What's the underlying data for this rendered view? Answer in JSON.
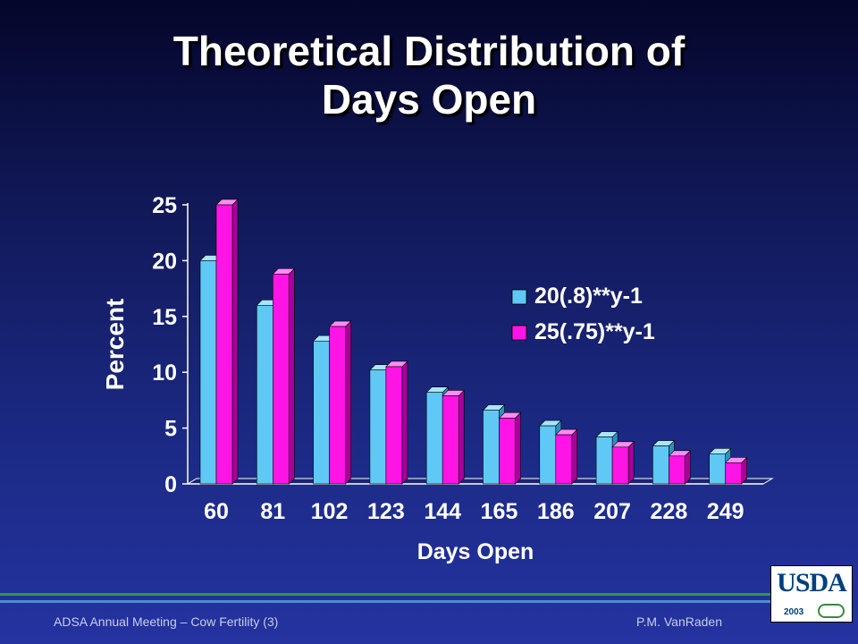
{
  "slide": {
    "title_line1": "Theoretical Distribution of",
    "title_line2": "Days Open",
    "footer_left": "ADSA Annual Meeting – Cow Fertility (3)",
    "footer_right": "P.M. VanRaden",
    "logo_text": "USDA",
    "logo_year": "2003"
  },
  "chart_data": {
    "type": "bar",
    "categories": [
      "60",
      "81",
      "102",
      "123",
      "144",
      "165",
      "186",
      "207",
      "228",
      "249"
    ],
    "series": [
      {
        "name": "20(.8)**y-1",
        "values": [
          20.0,
          16.0,
          12.8,
          10.2,
          8.2,
          6.6,
          5.2,
          4.2,
          3.4,
          2.7
        ]
      },
      {
        "name": "25(.75)**y-1",
        "values": [
          25.0,
          18.8,
          14.1,
          10.5,
          7.9,
          5.9,
          4.4,
          3.3,
          2.5,
          1.9
        ]
      }
    ],
    "xlabel": "Days Open",
    "ylabel": "Percent",
    "ylim": [
      0,
      25
    ],
    "yticks": [
      "0",
      "5",
      "10",
      "15",
      "20",
      "25"
    ],
    "legend_position": "right",
    "colors": {
      "series1": "#5fc8f5",
      "series2": "#ff14e6",
      "text": "#ffffff"
    }
  }
}
